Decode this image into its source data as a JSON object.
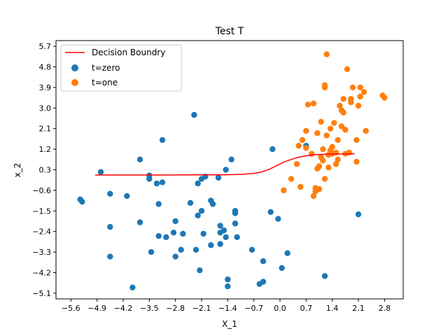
{
  "chart_data": {
    "type": "scatter",
    "title": "Test T",
    "xlabel": "X_1",
    "ylabel": "x_2",
    "xlim": [
      -6.0,
      3.3
    ],
    "ylim": [
      -5.35,
      5.95
    ],
    "xticks": [
      -5.6,
      -4.9,
      -4.2,
      -3.5,
      -2.8,
      -2.1,
      -1.4,
      -0.7,
      0.0,
      0.7,
      1.4,
      2.1,
      2.8
    ],
    "xtick_labels": [
      "−5.6",
      "−4.9",
      "−4.2",
      "−3.5",
      "−2.8",
      "−2.1",
      "−1.4",
      "−0.7",
      "0.0",
      "0.7",
      "1.4",
      "2.1",
      "2.8"
    ],
    "yticks": [
      -5.1,
      -4.2,
      -3.3,
      -2.4,
      -1.5,
      -0.6,
      0.3,
      1.2,
      2.1,
      3.0,
      3.9,
      4.8,
      5.7
    ],
    "ytick_labels": [
      "−5.1",
      "−4.2",
      "−3.3",
      "−2.4",
      "−1.5",
      "−0.6",
      "0.3",
      "1.2",
      "2.1",
      "3.0",
      "3.9",
      "4.8",
      "5.7"
    ],
    "grid": false,
    "legend_position": "top-left",
    "decision_boundary": {
      "name": "Decision Boundry",
      "color": "#ff0000",
      "points": [
        [
          -4.95,
          0.07
        ],
        [
          -4.0,
          0.07
        ],
        [
          -3.0,
          0.07
        ],
        [
          -2.0,
          0.08
        ],
        [
          -1.5,
          0.08
        ],
        [
          -1.0,
          0.1
        ],
        [
          -0.7,
          0.14
        ],
        [
          -0.5,
          0.2
        ],
        [
          -0.3,
          0.31
        ],
        [
          -0.1,
          0.47
        ],
        [
          0.1,
          0.63
        ],
        [
          0.3,
          0.75
        ],
        [
          0.5,
          0.85
        ],
        [
          0.7,
          0.91
        ],
        [
          0.9,
          0.95
        ],
        [
          1.2,
          0.98
        ],
        [
          1.6,
          0.99
        ],
        [
          2.0,
          1.0
        ]
      ]
    },
    "series": [
      {
        "name": "t=zero",
        "color": "#1f77b4",
        "points": [
          [
            -5.35,
            -1.0
          ],
          [
            -5.3,
            -1.1
          ],
          [
            -4.8,
            0.2
          ],
          [
            -4.55,
            -0.75
          ],
          [
            -4.55,
            -2.2
          ],
          [
            -4.55,
            -3.5
          ],
          [
            -4.1,
            -0.85
          ],
          [
            -3.95,
            -4.85
          ],
          [
            -3.75,
            0.75
          ],
          [
            -3.75,
            -2.0
          ],
          [
            -3.5,
            0.05
          ],
          [
            -3.5,
            -0.1
          ],
          [
            -3.45,
            -3.3
          ],
          [
            -3.3,
            -0.3
          ],
          [
            -3.25,
            -2.6
          ],
          [
            -3.25,
            -1.2
          ],
          [
            -3.15,
            1.6
          ],
          [
            -3.15,
            -0.25
          ],
          [
            -3.05,
            -2.65
          ],
          [
            -2.85,
            -2.45
          ],
          [
            -2.8,
            -1.95
          ],
          [
            -2.8,
            -3.5
          ],
          [
            -2.65,
            -3.2
          ],
          [
            -2.6,
            -2.5
          ],
          [
            -2.4,
            -1.15
          ],
          [
            -2.3,
            2.7
          ],
          [
            -2.25,
            -3.2
          ],
          [
            -2.2,
            -0.3
          ],
          [
            -2.2,
            -1.7
          ],
          [
            -2.15,
            -4.1
          ],
          [
            -2.1,
            -0.1
          ],
          [
            -2.1,
            -1.5
          ],
          [
            -2.05,
            -2.5
          ],
          [
            -2.0,
            0.0
          ],
          [
            -1.85,
            -1.05
          ],
          [
            -1.85,
            -3.0
          ],
          [
            -1.8,
            -1.2
          ],
          [
            -1.65,
            -0.05
          ],
          [
            -1.6,
            -2.45
          ],
          [
            -1.6,
            -2.95
          ],
          [
            -1.6,
            -2.15
          ],
          [
            -1.5,
            -2.35
          ],
          [
            -1.45,
            -2.65
          ],
          [
            -1.45,
            0.3
          ],
          [
            -1.4,
            -4.5
          ],
          [
            -1.4,
            -4.8
          ],
          [
            -1.3,
            0.75
          ],
          [
            -1.2,
            -1.5
          ],
          [
            -1.2,
            -1.6
          ],
          [
            -1.2,
            -2.05
          ],
          [
            -1.15,
            -2.65
          ],
          [
            -0.75,
            -3.2
          ],
          [
            -0.55,
            -4.7
          ],
          [
            -0.45,
            -3.7
          ],
          [
            -0.45,
            -4.6
          ],
          [
            -0.25,
            -1.55
          ],
          [
            -0.2,
            1.2
          ],
          [
            -0.05,
            -1.85
          ],
          [
            0.05,
            -4.0
          ],
          [
            0.2,
            -3.35
          ],
          [
            0.7,
            1.35
          ],
          [
            1.2,
            -4.35
          ],
          [
            2.1,
            -1.65
          ]
        ]
      },
      {
        "name": "t=one",
        "color": "#ff7f0e",
        "points": [
          [
            0.1,
            -0.6
          ],
          [
            0.3,
            -0.1
          ],
          [
            0.45,
            0.55
          ],
          [
            0.5,
            1.35
          ],
          [
            0.55,
            -0.45
          ],
          [
            0.6,
            1.6
          ],
          [
            0.7,
            1.25
          ],
          [
            0.7,
            2.0
          ],
          [
            0.75,
            3.15
          ],
          [
            0.85,
            1.0
          ],
          [
            0.9,
            3.2
          ],
          [
            0.9,
            -0.85
          ],
          [
            0.95,
            -0.5
          ],
          [
            0.95,
            -0.65
          ],
          [
            1.0,
            1.9
          ],
          [
            1.0,
            0.35
          ],
          [
            1.05,
            -0.55
          ],
          [
            1.05,
            0.45
          ],
          [
            1.1,
            2.4
          ],
          [
            1.1,
            0.85
          ],
          [
            1.15,
            1.2
          ],
          [
            1.15,
            0.7
          ],
          [
            1.2,
            4.0
          ],
          [
            1.2,
            -0.1
          ],
          [
            1.25,
            5.35
          ],
          [
            1.25,
            1.8
          ],
          [
            1.3,
            0.95
          ],
          [
            1.3,
            0.4
          ],
          [
            1.35,
            2.1
          ],
          [
            1.35,
            1.15
          ],
          [
            1.4,
            1.3
          ],
          [
            1.4,
            1.0
          ],
          [
            1.45,
            2.35
          ],
          [
            1.5,
            0.55
          ],
          [
            1.5,
            1.05
          ],
          [
            1.55,
            1.6
          ],
          [
            1.55,
            0.75
          ],
          [
            1.6,
            3.1
          ],
          [
            1.65,
            2.2
          ],
          [
            1.65,
            2.9
          ],
          [
            1.7,
            3.4
          ],
          [
            1.7,
            2.8
          ],
          [
            1.75,
            2.05
          ],
          [
            1.8,
            4.7
          ],
          [
            1.85,
            1.05
          ],
          [
            1.9,
            3.4
          ],
          [
            1.9,
            3.25
          ],
          [
            2.05,
            0.65
          ],
          [
            2.05,
            1.6
          ],
          [
            2.1,
            3.1
          ],
          [
            2.15,
            3.9
          ],
          [
            2.15,
            3.5
          ],
          [
            2.25,
            3.7
          ],
          [
            2.3,
            2.0
          ],
          [
            2.75,
            3.55
          ],
          [
            2.8,
            3.45
          ],
          [
            1.2,
            3.9
          ],
          [
            1.95,
            3.9
          ],
          [
            1.9,
            3.35
          ],
          [
            1.75,
            1.0
          ]
        ]
      }
    ]
  }
}
